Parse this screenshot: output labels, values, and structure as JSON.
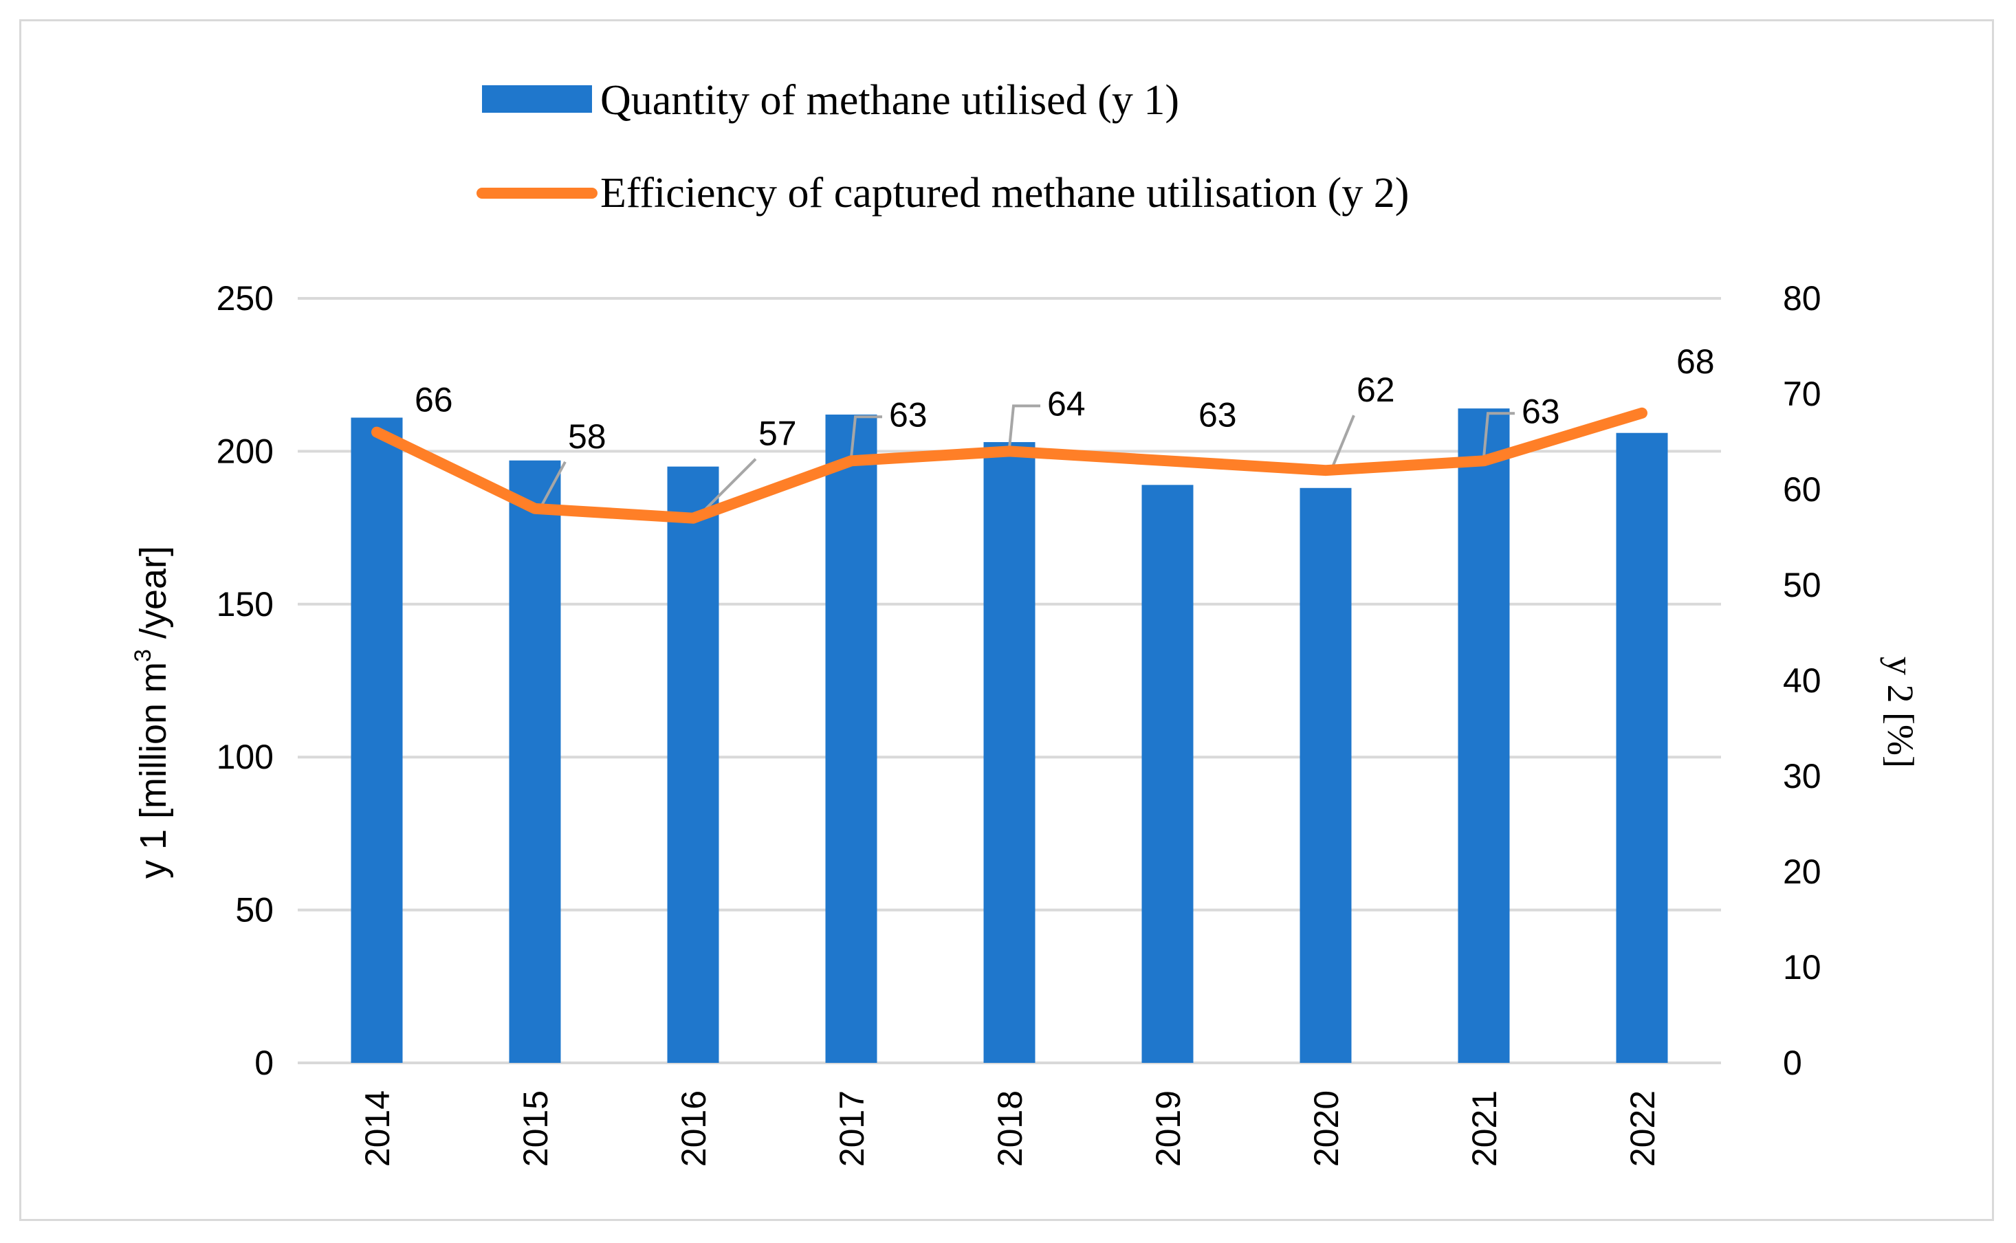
{
  "chart_data": {
    "type": "bar",
    "categories": [
      "2014",
      "2015",
      "2016",
      "2017",
      "2018",
      "2019",
      "2020",
      "2021",
      "2022"
    ],
    "series": [
      {
        "name": "Quantity of methane utilised  (y 1)",
        "type": "bar",
        "axis": "y1",
        "values": [
          211,
          197,
          195,
          212,
          203,
          189,
          188,
          214,
          206
        ],
        "color": "#1f77cc"
      },
      {
        "name": "Efficiency of captured methane utilisation (y 2)",
        "type": "line",
        "axis": "y2",
        "values": [
          66,
          58,
          57,
          63,
          64,
          63,
          62,
          63,
          68
        ],
        "data_labels": [
          "66",
          "58",
          "57",
          "63",
          "64",
          "63",
          "62",
          "63",
          "68"
        ],
        "color": "#ff7f27"
      }
    ],
    "y1": {
      "label_prefix": "y 1 [million m",
      "label_sup": "3",
      "label_suffix": " /year]",
      "ylim": [
        0,
        250
      ],
      "ticks": [
        "0",
        "50",
        "100",
        "150",
        "200",
        "250"
      ]
    },
    "y2": {
      "label": "y 2 [%]",
      "ylim": [
        0,
        80
      ],
      "ticks": [
        "0",
        "10",
        "20",
        "30",
        "40",
        "50",
        "60",
        "70",
        "80"
      ]
    },
    "legend_position": "top",
    "grid": true,
    "gridline_color": "#d9d9d9",
    "leader_line_color": "#a6a6a6"
  }
}
